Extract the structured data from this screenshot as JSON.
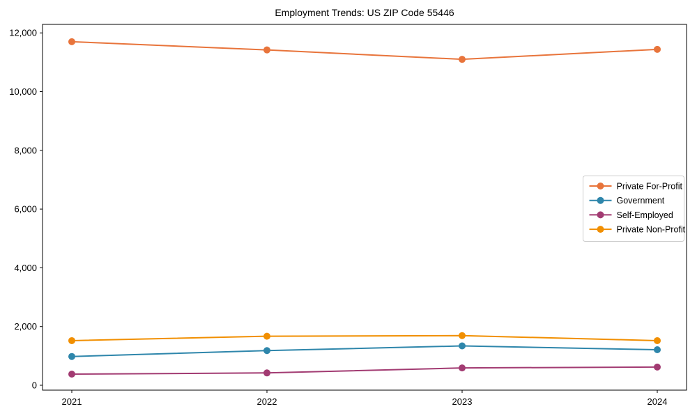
{
  "title": "Employment Trends: US ZIP Code 55446",
  "chart_data": {
    "type": "line",
    "title": "Employment Trends: US ZIP Code 55446",
    "x": [
      2021,
      2022,
      2023,
      2024
    ],
    "x_tick_labels": [
      "2021",
      "2022",
      "2023",
      "2024"
    ],
    "series": [
      {
        "name": "Private For-Profit",
        "color": "#E8743B",
        "values": [
          11700,
          11420,
          11100,
          11440
        ]
      },
      {
        "name": "Government",
        "color": "#2E86AB",
        "values": [
          980,
          1180,
          1340,
          1210
        ]
      },
      {
        "name": "Self-Employed",
        "color": "#A23B72",
        "values": [
          380,
          420,
          590,
          620
        ]
      },
      {
        "name": "Private Non-Profit",
        "color": "#F18F01",
        "values": [
          1520,
          1670,
          1690,
          1520
        ]
      }
    ],
    "yticks": [
      0,
      2000,
      4000,
      6000,
      8000,
      10000,
      12000
    ],
    "ytick_labels": [
      "0",
      "2,000",
      "4,000",
      "6,000",
      "8,000",
      "10,000",
      "12,000"
    ],
    "xlim": [
      2020.85,
      2024.15
    ],
    "ylim": [
      -166,
      12290
    ],
    "grid": false,
    "legend_position": "center-right",
    "marker": "circle",
    "background_color": "#ffffff",
    "axis_color": "#000000",
    "legend_border_color": "#cccccc"
  }
}
